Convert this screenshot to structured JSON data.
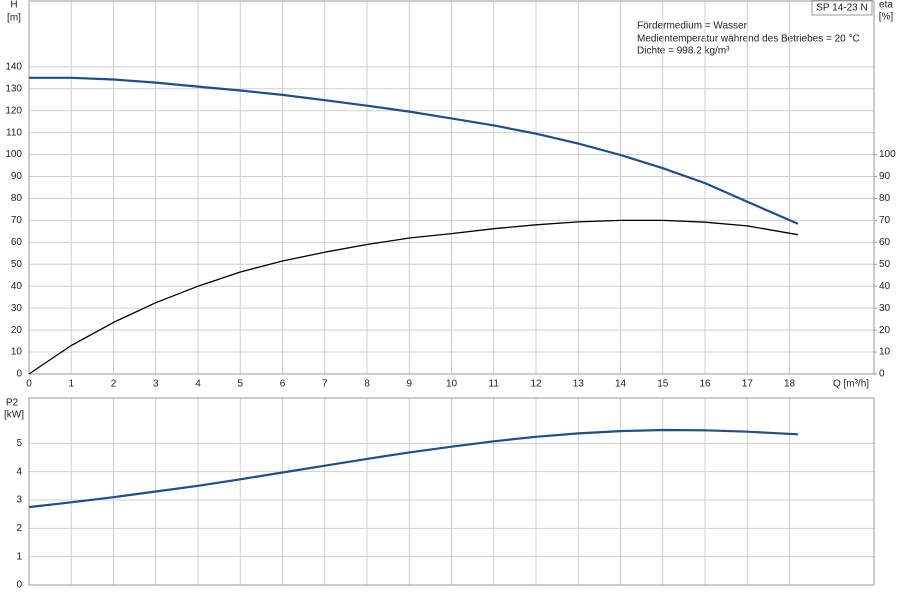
{
  "chart_data": [
    {
      "type": "line",
      "ylabel": "H",
      "yunit": "[m]",
      "y2label": "eta",
      "y2unit": "[%]",
      "xlabel": "Q [m³/h]",
      "badge": "SP 14-23 N",
      "annotations": [
        "Fördermedium = Wasser",
        "Medientemperatur während des Betriebes = 20 °C",
        "Dichte = 998.2 kg/m³"
      ],
      "x": [
        0,
        1,
        2,
        3,
        4,
        5,
        6,
        7,
        8,
        9,
        10,
        11,
        12,
        13,
        14,
        15,
        16,
        17,
        18.2
      ],
      "series": [
        {
          "color": "#1f4e8c",
          "values": [
            135,
            135,
            134.2,
            132.8,
            131,
            129.2,
            127.2,
            124.8,
            122.3,
            119.6,
            116.5,
            113.3,
            109.5,
            105,
            99.8,
            93.8,
            87,
            78.5,
            68.5
          ]
        },
        {
          "color": "#000000",
          "axis": "y2",
          "values": [
            0,
            13,
            23.5,
            32.5,
            40,
            46.5,
            51.5,
            55.5,
            59,
            62,
            64,
            66.2,
            68,
            69.3,
            70,
            70,
            69.2,
            67.5,
            63.5
          ]
        }
      ],
      "xlim": [
        0,
        20
      ],
      "xticks": [
        0,
        1,
        2,
        3,
        4,
        5,
        6,
        7,
        8,
        9,
        10,
        11,
        12,
        13,
        14,
        15,
        16,
        17,
        18
      ],
      "ylim": [
        0,
        170
      ],
      "yticks": [
        0,
        10,
        20,
        30,
        40,
        50,
        60,
        70,
        80,
        90,
        100,
        110,
        120,
        130,
        140
      ],
      "y2lim": [
        0,
        170
      ],
      "y2ticks": [
        0,
        10,
        20,
        30,
        40,
        50,
        60,
        70,
        80,
        90,
        100
      ],
      "grid": true
    },
    {
      "type": "line",
      "ylabel": "P2",
      "yunit": "[kW]",
      "x": [
        0,
        1,
        2,
        3,
        4,
        5,
        6,
        7,
        8,
        9,
        10,
        11,
        12,
        13,
        14,
        15,
        16,
        17,
        18.2
      ],
      "series": [
        {
          "color": "#1f4e8c",
          "values": [
            2.75,
            2.92,
            3.1,
            3.3,
            3.5,
            3.73,
            3.97,
            4.21,
            4.45,
            4.68,
            4.88,
            5.07,
            5.23,
            5.35,
            5.43,
            5.47,
            5.46,
            5.41,
            5.32
          ]
        }
      ],
      "xlim": [
        0,
        20
      ],
      "xticks": [
        0,
        1,
        2,
        3,
        4,
        5,
        6,
        7,
        8,
        9,
        10,
        11,
        12,
        13,
        14,
        15,
        16,
        17,
        18
      ],
      "ylim": [
        0,
        6.6
      ],
      "yticks": [
        0,
        1,
        2,
        3,
        4,
        5
      ],
      "grid": true
    }
  ]
}
